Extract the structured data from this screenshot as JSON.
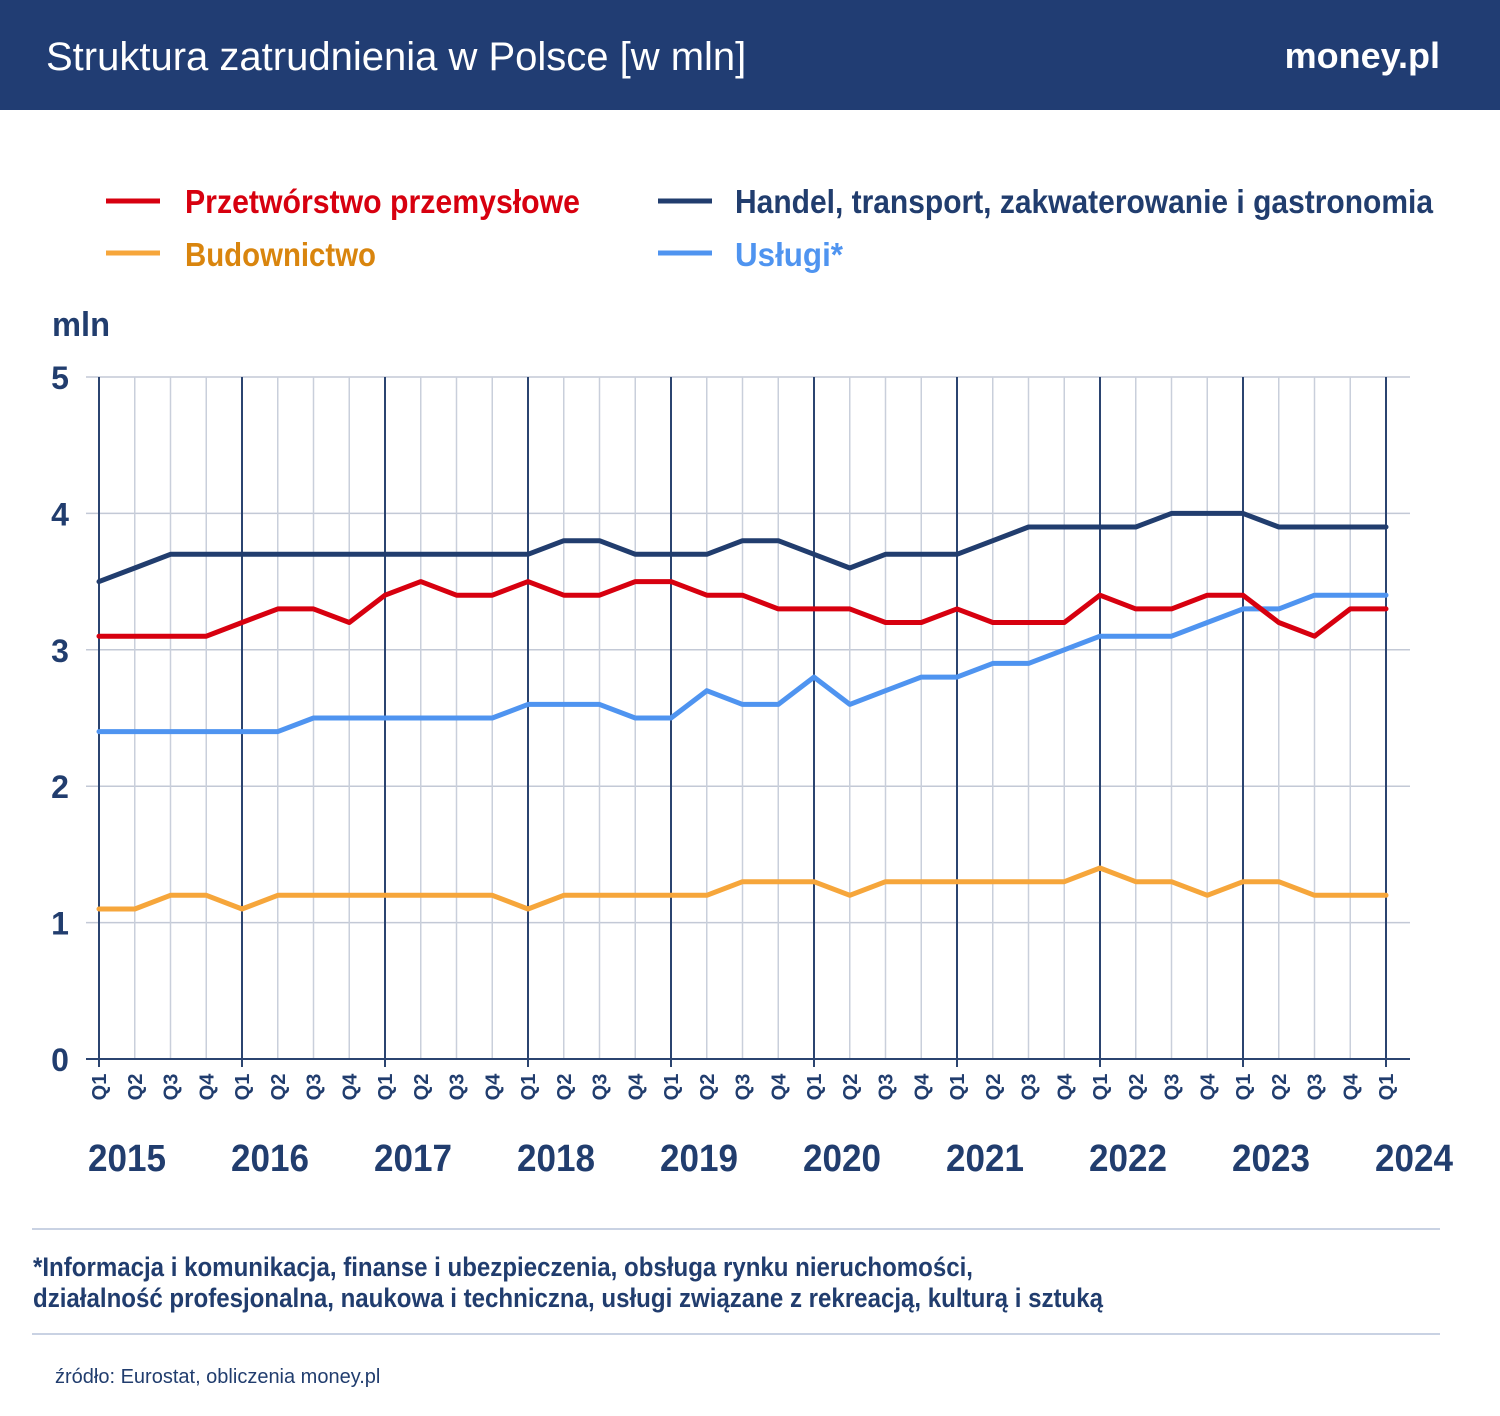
{
  "header": {
    "title": "Struktura zatrudnienia w Polsce [w mln]",
    "logo": "money.pl"
  },
  "colors": {
    "header_bg": "#213d73",
    "przetworstwo": "#d7000f",
    "handel": "#213d6e",
    "budownictwo": "#f6a63b",
    "uslugi": "#4f94f0",
    "budownictwo_label": "#d9850e"
  },
  "chart_data": {
    "type": "line",
    "ylabel": "mln",
    "ylim": [
      0,
      5
    ],
    "yticks": [
      0,
      1,
      2,
      3,
      4,
      5
    ],
    "grid": true,
    "legend_placement": "top",
    "quarters": [
      "Q1",
      "Q2",
      "Q3",
      "Q4",
      "Q1",
      "Q2",
      "Q3",
      "Q4",
      "Q1",
      "Q2",
      "Q3",
      "Q4",
      "Q1",
      "Q2",
      "Q3",
      "Q4",
      "Q1",
      "Q2",
      "Q3",
      "Q4",
      "Q1",
      "Q2",
      "Q3",
      "Q4",
      "Q1",
      "Q2",
      "Q3",
      "Q4",
      "Q1",
      "Q2",
      "Q3",
      "Q4",
      "Q1",
      "Q2",
      "Q3",
      "Q4",
      "Q1"
    ],
    "years": [
      "2015",
      "2016",
      "2017",
      "2018",
      "2019",
      "2020",
      "2021",
      "2022",
      "2023",
      "2024"
    ],
    "series": [
      {
        "name": "Przetwórstwo przemysłowe",
        "key": "przetworstwo",
        "values": [
          3.1,
          3.1,
          3.1,
          3.1,
          3.2,
          3.3,
          3.3,
          3.2,
          3.4,
          3.5,
          3.4,
          3.4,
          3.5,
          3.4,
          3.4,
          3.5,
          3.5,
          3.4,
          3.4,
          3.3,
          3.3,
          3.3,
          3.2,
          3.2,
          3.3,
          3.2,
          3.2,
          3.2,
          3.4,
          3.3,
          3.3,
          3.4,
          3.4,
          3.2,
          3.1,
          3.3,
          3.3
        ]
      },
      {
        "name": "Handel, transport, zakwaterowanie i gastronomia",
        "key": "handel",
        "values": [
          3.5,
          3.6,
          3.7,
          3.7,
          3.7,
          3.7,
          3.7,
          3.7,
          3.7,
          3.7,
          3.7,
          3.7,
          3.7,
          3.8,
          3.8,
          3.7,
          3.7,
          3.7,
          3.8,
          3.8,
          3.7,
          3.6,
          3.7,
          3.7,
          3.7,
          3.8,
          3.9,
          3.9,
          3.9,
          3.9,
          4.0,
          4.0,
          4.0,
          3.9,
          3.9,
          3.9,
          3.9
        ]
      },
      {
        "name": "Budownictwo",
        "key": "budownictwo",
        "values": [
          1.1,
          1.1,
          1.2,
          1.2,
          1.1,
          1.2,
          1.2,
          1.2,
          1.2,
          1.2,
          1.2,
          1.2,
          1.1,
          1.2,
          1.2,
          1.2,
          1.2,
          1.2,
          1.3,
          1.3,
          1.3,
          1.2,
          1.3,
          1.3,
          1.3,
          1.3,
          1.3,
          1.3,
          1.4,
          1.3,
          1.3,
          1.2,
          1.3,
          1.3,
          1.2,
          1.2,
          1.2
        ]
      },
      {
        "name": "Usługi*",
        "key": "uslugi",
        "values": [
          2.4,
          2.4,
          2.4,
          2.4,
          2.4,
          2.4,
          2.5,
          2.5,
          2.5,
          2.5,
          2.5,
          2.5,
          2.6,
          2.6,
          2.6,
          2.5,
          2.5,
          2.7,
          2.6,
          2.6,
          2.8,
          2.6,
          2.7,
          2.8,
          2.8,
          2.9,
          2.9,
          3.0,
          3.1,
          3.1,
          3.1,
          3.2,
          3.3,
          3.3,
          3.4,
          3.4,
          3.4
        ]
      }
    ]
  },
  "footnote": {
    "line1": "*Informacja i komunikacja, finanse i ubezpieczenia, obsługa rynku nieruchomości,",
    "line2": "działalność profesjonalna, naukowa i techniczna, usługi związane z rekreacją, kulturą i sztuką"
  },
  "source": "źródło: Eurostat, obliczenia money.pl"
}
